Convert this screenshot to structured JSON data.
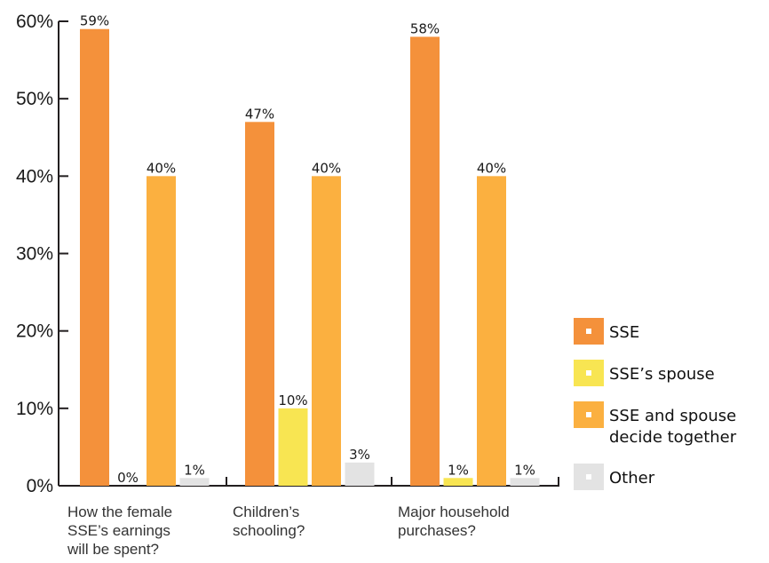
{
  "chart_data": {
    "type": "bar",
    "categories": [
      [
        "How the female",
        "SSE’s earnings",
        "will be spent?"
      ],
      [
        "Children’s",
        "schooling?"
      ],
      [
        "Major household",
        "purchases?"
      ]
    ],
    "series": [
      {
        "name": "SSE",
        "color": "#f4913b",
        "values": [
          59,
          47,
          58
        ],
        "labels": [
          "59%",
          "47%",
          "58%"
        ]
      },
      {
        "name": "SSE’s spouse",
        "color": "#f8e552",
        "values": [
          0,
          10,
          1
        ],
        "labels": [
          "0%",
          "10%",
          "1%"
        ]
      },
      {
        "name": "SSE and spouse decide together",
        "legend_lines": [
          "SSE and spouse",
          "decide together"
        ],
        "color": "#fbb040",
        "values": [
          40,
          40,
          40
        ],
        "labels": [
          "40%",
          "40%",
          "40%"
        ]
      },
      {
        "name": "Other",
        "color": "#e3e3e3",
        "values": [
          1,
          3,
          1
        ],
        "labels": [
          "1%",
          "3%",
          "1%"
        ]
      }
    ],
    "ylim": [
      0,
      60
    ],
    "yticks": [
      0,
      10,
      20,
      30,
      40,
      50,
      60
    ],
    "ytick_labels": [
      "0%",
      "10%",
      "20%",
      "30%",
      "40%",
      "50%",
      "60%"
    ],
    "title": "",
    "xlabel": "",
    "ylabel": "",
    "legend_position": "right",
    "grid": false,
    "axis_color": "#231f20"
  }
}
